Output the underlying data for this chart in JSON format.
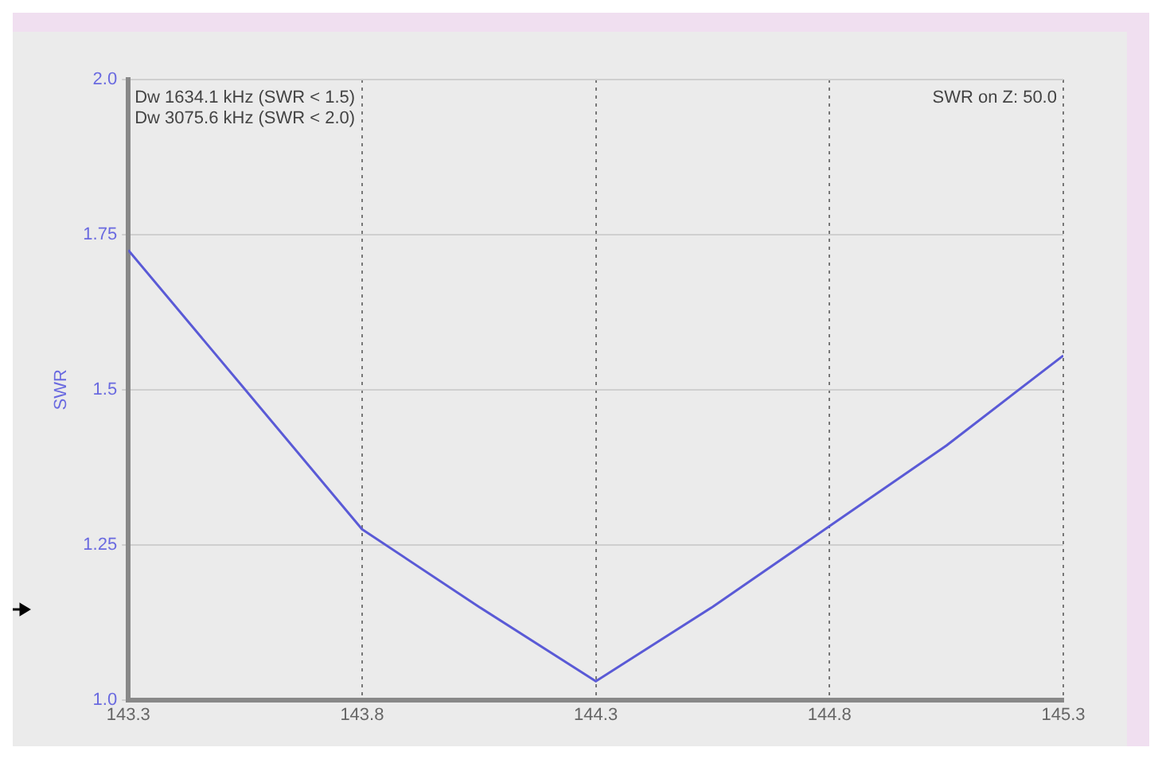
{
  "chart_data": {
    "type": "line",
    "ylabel": "SWR",
    "x": [
      143.3,
      143.55,
      143.8,
      144.05,
      144.3,
      144.55,
      144.8,
      145.05,
      145.3
    ],
    "series": [
      {
        "color": "#5a5ad6",
        "values": [
          1.725,
          1.5,
          1.275,
          1.15,
          1.03,
          1.15,
          1.28,
          1.41,
          1.555
        ]
      }
    ],
    "xlim": [
      143.3,
      145.3
    ],
    "xticks": [
      143.3,
      143.8,
      144.3,
      144.8,
      145.3
    ],
    "ylim": [
      1.0,
      2.0
    ],
    "yticks": [
      {
        "value": 1,
        "label": "1.0"
      },
      1.25,
      1.5,
      1.75,
      {
        "value": 2,
        "label": "2.0"
      }
    ],
    "grid": true,
    "marker": "none",
    "line_style": "solid",
    "annotations": [
      "Dw 1634.1 kHz (SWR < 1.5)",
      "Dw 3075.6 kHz (SWR < 2.0)",
      "SWR on Z: 50.0"
    ]
  }
}
